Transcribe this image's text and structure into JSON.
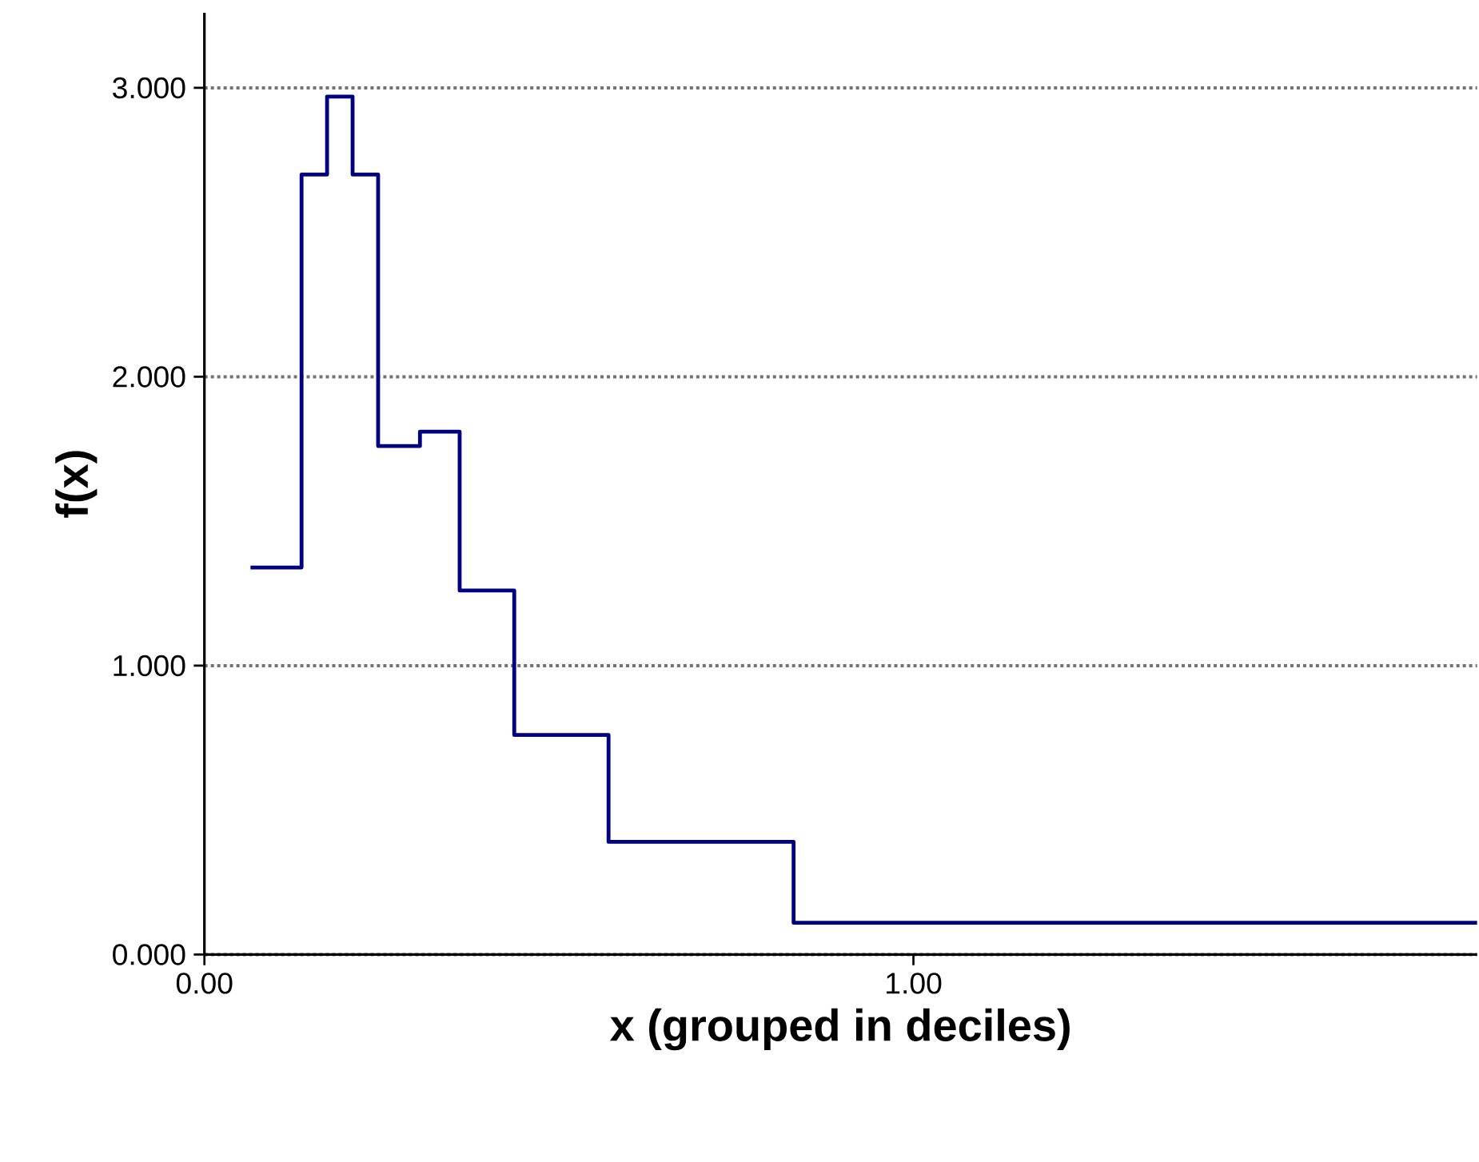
{
  "chart_data": {
    "type": "histogram",
    "xlabel": "x (grouped in deciles)",
    "ylabel": "f(x)",
    "bins": [
      0.065,
      0.137,
      0.173,
      0.209,
      0.245,
      0.304,
      0.36,
      0.437,
      0.57,
      0.831,
      1.795
    ],
    "values": [
      1.34,
      2.7,
      2.97,
      2.7,
      1.76,
      1.81,
      1.26,
      0.76,
      0.39,
      0.11
    ],
    "color": "#000080",
    "xlim": [
      0,
      1.795
    ],
    "ylim": [
      0,
      3.26
    ],
    "xticks": [
      {
        "value": 0,
        "label": "0.00"
      },
      {
        "value": 1,
        "label": "1.00"
      }
    ],
    "yticks": [
      {
        "value": 0,
        "label": "0.000"
      },
      {
        "value": 1,
        "label": "1.000"
      },
      {
        "value": 2,
        "label": "2.000"
      },
      {
        "value": 3,
        "label": "3.000"
      }
    ],
    "grid": "y"
  }
}
